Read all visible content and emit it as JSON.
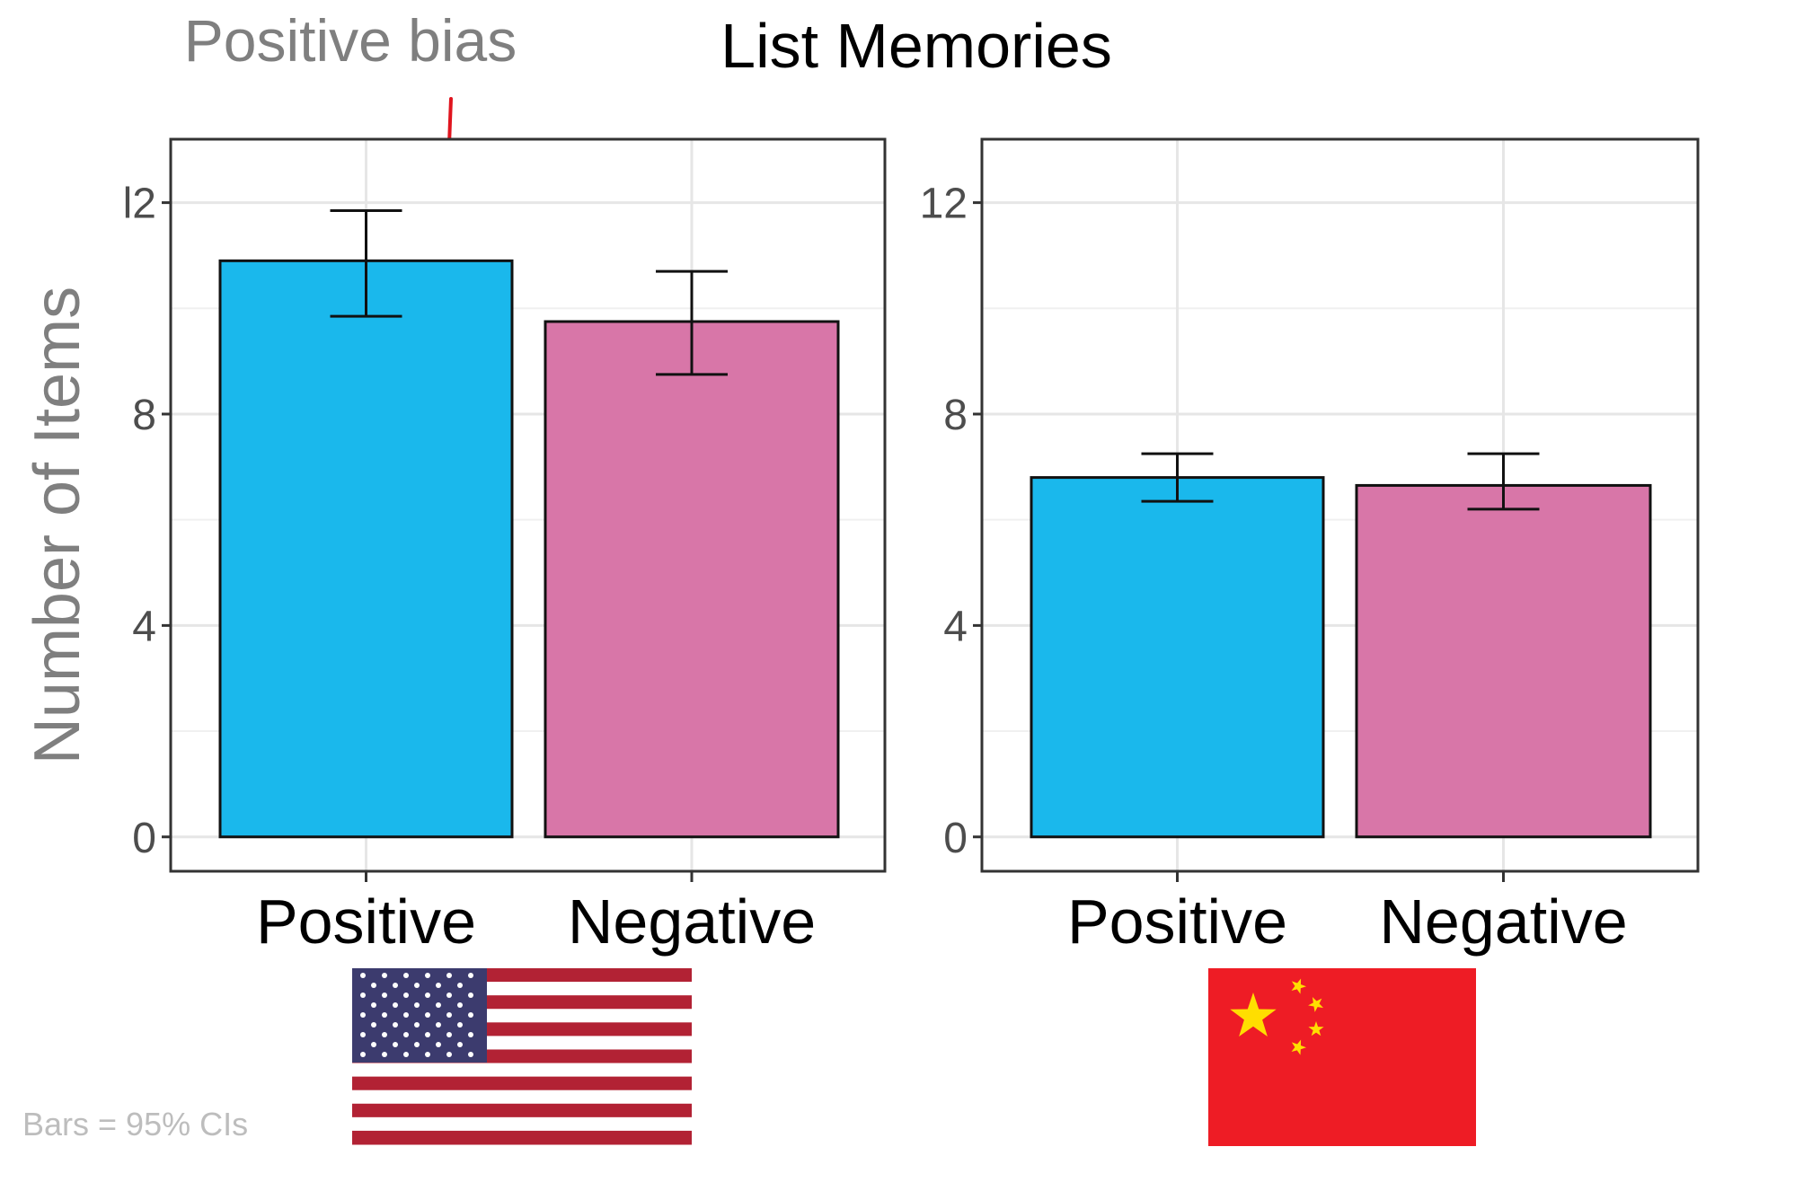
{
  "annotation": {
    "text": "Positive bias",
    "color": "#7f7f7f",
    "arrow_color": "#e0141e"
  },
  "title": "List Memories",
  "ylabel": "Number of Items",
  "footnote": "Bars = 95% CIs",
  "colors": {
    "positive": "#1ab8ec",
    "negative": "#d876a8",
    "axis": "#333333",
    "grid": "#e6e6e6"
  },
  "chart_data": [
    {
      "type": "bar",
      "group": "US",
      "categories": [
        "Positive",
        "Negative"
      ],
      "values": [
        10.9,
        9.75
      ],
      "ci_low": [
        9.85,
        8.75
      ],
      "ci_high": [
        11.85,
        10.7
      ],
      "ylim": [
        -0.65,
        13.2
      ],
      "yticks": [
        "0",
        "4",
        "8",
        "12"
      ],
      "ytick_display": [
        "0",
        "4",
        "8",
        "l2"
      ],
      "flag": "us-flag"
    },
    {
      "type": "bar",
      "group": "China",
      "categories": [
        "Positive",
        "Negative"
      ],
      "values": [
        6.8,
        6.65
      ],
      "ci_low": [
        6.35,
        6.2
      ],
      "ci_high": [
        7.25,
        7.25
      ],
      "ylim": [
        -0.65,
        13.2
      ],
      "yticks": [
        "0",
        "4",
        "8",
        "12"
      ],
      "ytick_display": [
        "0",
        "4",
        "8",
        "12"
      ],
      "flag": "china-flag"
    }
  ]
}
